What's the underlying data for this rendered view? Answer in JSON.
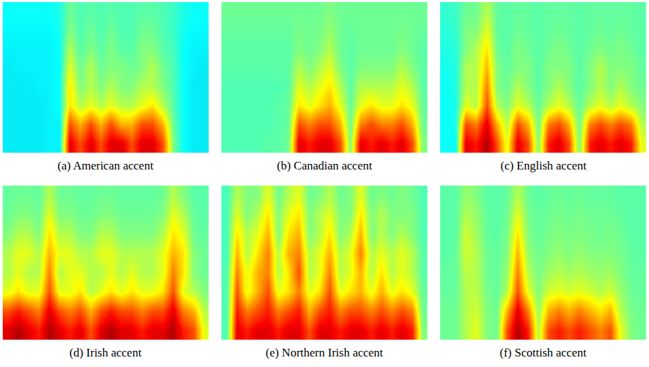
{
  "chart_data": [
    {
      "type": "heatmap",
      "title": "(a) American accent",
      "zlim": [
        0,
        10
      ],
      "tick_labels": false,
      "cells": [
        [
          3.5,
          3.5,
          3.5,
          3.5,
          3.6,
          3.6,
          9,
          8,
          9,
          8,
          9,
          9,
          8,
          9,
          9,
          8,
          5,
          3.8,
          3.5,
          3.5
        ],
        [
          3.5,
          3.5,
          3.5,
          3.5,
          3.6,
          3.6,
          8,
          7,
          8,
          7,
          8,
          7,
          7,
          8,
          8,
          7,
          4.8,
          3.8,
          3.5,
          3.5
        ],
        [
          3.5,
          3.5,
          3.5,
          3.5,
          3.6,
          3.8,
          6.5,
          5.5,
          6,
          5.5,
          6,
          5.5,
          5.5,
          6,
          6.5,
          5.5,
          4.6,
          3.8,
          3.5,
          3.5
        ],
        [
          3.5,
          3.5,
          3.5,
          3.6,
          3.6,
          3.8,
          6.5,
          5,
          5.5,
          5,
          5.5,
          5,
          5,
          5.5,
          5.5,
          5,
          4.5,
          3.8,
          3.5,
          3.5
        ],
        [
          3.5,
          3.6,
          3.6,
          3.6,
          3.6,
          3.8,
          6,
          4.8,
          5.5,
          4.8,
          5,
          5,
          4.8,
          5,
          5.5,
          4.8,
          4.5,
          3.8,
          3.6,
          3.5
        ],
        [
          3.6,
          3.6,
          3.6,
          3.6,
          3.6,
          3.8,
          5.5,
          4.6,
          5,
          4.6,
          5,
          4.6,
          4.6,
          5,
          5,
          4.6,
          4.4,
          3.8,
          3.6,
          3.6
        ],
        [
          3.7,
          3.7,
          3.7,
          3.7,
          3.7,
          3.9,
          5,
          4.5,
          4.8,
          4.5,
          4.8,
          4.5,
          4.5,
          4.8,
          4.8,
          4.5,
          4.3,
          3.9,
          3.7,
          3.7
        ],
        [
          3.8,
          3.8,
          3.8,
          3.8,
          3.8,
          4,
          4.8,
          4.5,
          4.6,
          4.5,
          4.6,
          4.5,
          4.5,
          4.6,
          4.6,
          4.5,
          4.3,
          4,
          3.8,
          3.8
        ]
      ]
    },
    {
      "type": "heatmap",
      "title": "(b) Canadian accent",
      "zlim": [
        0,
        10
      ],
      "tick_labels": false,
      "cells": [
        [
          4.5,
          4.5,
          4.5,
          4.5,
          4.6,
          4.6,
          4.8,
          9,
          8.5,
          9,
          9,
          8,
          5,
          9,
          8.5,
          9,
          8.5,
          9,
          8,
          5
        ],
        [
          4.5,
          4.5,
          4.5,
          4.5,
          4.5,
          4.6,
          4.7,
          8,
          7.5,
          8,
          8,
          7,
          4.8,
          7.5,
          8,
          7.5,
          7.5,
          8,
          7,
          4.8
        ],
        [
          4.5,
          4.5,
          4.5,
          4.5,
          4.5,
          4.6,
          4.7,
          6.5,
          6,
          6.5,
          7,
          6,
          4.7,
          6,
          6.5,
          6,
          6,
          6.5,
          6,
          4.7
        ],
        [
          4.5,
          4.5,
          4.5,
          4.5,
          4.5,
          4.5,
          4.6,
          6,
          5.5,
          6,
          6.5,
          5.5,
          4.6,
          5.5,
          5.5,
          5.5,
          5.5,
          6,
          5.5,
          4.6
        ],
        [
          4.6,
          4.6,
          4.6,
          4.6,
          4.6,
          4.6,
          4.6,
          5.5,
          5,
          5.5,
          6,
          5,
          4.6,
          5,
          5,
          5,
          5,
          5.5,
          5,
          4.6
        ],
        [
          4.6,
          4.6,
          4.6,
          4.6,
          4.6,
          4.6,
          4.6,
          5,
          4.8,
          5,
          5.5,
          4.8,
          4.6,
          4.8,
          4.8,
          4.8,
          4.8,
          5,
          4.8,
          4.6
        ],
        [
          4.7,
          4.7,
          4.7,
          4.7,
          4.7,
          4.7,
          4.7,
          4.9,
          4.8,
          4.9,
          5.2,
          4.8,
          4.7,
          4.8,
          4.8,
          4.8,
          4.8,
          4.9,
          4.8,
          4.7
        ],
        [
          4.8,
          4.8,
          4.8,
          4.8,
          4.8,
          4.8,
          4.8,
          4.8,
          4.8,
          4.8,
          5,
          4.8,
          4.8,
          4.8,
          4.8,
          4.8,
          4.8,
          4.8,
          4.8,
          4.8
        ]
      ]
    },
    {
      "type": "heatmap",
      "title": "(c) English accent",
      "zlim": [
        0,
        10
      ],
      "tick_labels": false,
      "cells": [
        [
          3.8,
          3.8,
          9,
          8.5,
          9.5,
          8,
          6,
          9,
          8,
          5,
          8.5,
          9,
          8,
          5,
          8.5,
          9,
          8.5,
          9,
          8.5,
          6
        ],
        [
          3.8,
          3.9,
          8,
          7.5,
          9,
          7,
          5.5,
          8,
          7,
          4.8,
          7.5,
          8,
          7,
          4.8,
          7.5,
          8,
          7.5,
          8,
          7.5,
          5.5
        ],
        [
          3.8,
          3.9,
          6,
          5.5,
          8,
          5.5,
          5,
          6,
          5.5,
          4.7,
          5.5,
          6,
          5.5,
          4.7,
          5.5,
          6,
          5.5,
          6,
          5.5,
          5
        ],
        [
          3.8,
          4,
          5.5,
          5.5,
          7.5,
          5,
          4.8,
          5.5,
          5,
          4.6,
          5,
          5.5,
          5,
          4.6,
          5,
          5.5,
          5,
          5.5,
          5,
          4.8
        ],
        [
          3.9,
          4,
          5.5,
          5.5,
          7,
          5,
          4.7,
          5,
          5,
          4.6,
          5,
          5,
          5,
          4.6,
          5,
          5.5,
          5,
          5,
          5,
          4.7
        ],
        [
          4,
          4.1,
          5,
          5.5,
          6.5,
          4.8,
          4.6,
          5,
          4.8,
          4.6,
          4.8,
          5,
          4.8,
          4.6,
          4.8,
          5,
          4.8,
          5,
          4.8,
          4.6
        ],
        [
          4.1,
          4.2,
          5,
          5,
          6,
          4.7,
          4.6,
          4.8,
          4.7,
          4.6,
          4.7,
          4.8,
          4.7,
          4.6,
          4.7,
          4.8,
          4.7,
          4.8,
          4.7,
          4.6
        ],
        [
          4.2,
          4.3,
          4.8,
          4.8,
          5.5,
          4.7,
          4.6,
          4.7,
          4.7,
          4.6,
          4.7,
          4.7,
          4.7,
          4.6,
          4.7,
          4.7,
          4.7,
          4.7,
          4.7,
          4.6
        ]
      ]
    },
    {
      "type": "heatmap",
      "title": "(d) Irish accent",
      "zlim": [
        0,
        10
      ],
      "tick_labels": false,
      "cells": [
        [
          9,
          9.5,
          9,
          8.5,
          9.5,
          9,
          8.5,
          9,
          8,
          9,
          9.5,
          9,
          9,
          8.5,
          9,
          9,
          9.5,
          8.5,
          8,
          6
        ],
        [
          8,
          8.5,
          8,
          7.5,
          9,
          8,
          7.5,
          8,
          7,
          8,
          8.5,
          8,
          8,
          7.5,
          8,
          8,
          9,
          7.5,
          7,
          5.5
        ],
        [
          6,
          6.5,
          6,
          6,
          8,
          6,
          6,
          6.5,
          5.5,
          6,
          6.5,
          6,
          6.5,
          6,
          6,
          6.5,
          8,
          6,
          5.5,
          5
        ],
        [
          5.5,
          6,
          5.5,
          5.5,
          7.5,
          5.5,
          6,
          6,
          5.5,
          5.5,
          6,
          5.5,
          6,
          5.5,
          5.5,
          6,
          7.5,
          6.5,
          5,
          4.8
        ],
        [
          5.5,
          6,
          6,
          5.5,
          7,
          6,
          6,
          5.5,
          5.5,
          6,
          6,
          5.5,
          5.5,
          5.5,
          5.5,
          6,
          7,
          6.5,
          5,
          4.8
        ],
        [
          5,
          5.5,
          5.5,
          5,
          6.5,
          5.5,
          5.5,
          5,
          5,
          5.5,
          5.5,
          5,
          5,
          5,
          5,
          5.5,
          6.5,
          6,
          4.8,
          4.7
        ],
        [
          4.8,
          5,
          5,
          4.8,
          6,
          5,
          5,
          4.8,
          4.8,
          5,
          5,
          4.8,
          4.8,
          4.8,
          4.8,
          5,
          6,
          5.5,
          4.7,
          4.6
        ],
        [
          4.7,
          4.8,
          4.8,
          4.7,
          5.5,
          4.8,
          4.8,
          4.7,
          4.7,
          4.8,
          4.8,
          4.7,
          4.7,
          4.7,
          4.7,
          4.8,
          5.5,
          5,
          4.6,
          4.6
        ]
      ]
    },
    {
      "type": "heatmap",
      "title": "(e) Northern Irish accent",
      "zlim": [
        0,
        10
      ],
      "tick_labels": false,
      "cells": [
        [
          4.5,
          9,
          8.5,
          9,
          9,
          8.5,
          9,
          9,
          8,
          9,
          9,
          8.5,
          9,
          9,
          8.5,
          9,
          8.5,
          9,
          8.5,
          5
        ],
        [
          4.5,
          8.5,
          7.5,
          8,
          8.5,
          7.5,
          8,
          8.5,
          7,
          8,
          8.5,
          7.5,
          8,
          8,
          7.5,
          8,
          7.5,
          8,
          7.5,
          4.8
        ],
        [
          4.5,
          8,
          6,
          7,
          8,
          6,
          6.5,
          7.5,
          6,
          6.5,
          8,
          6,
          6.5,
          7,
          6,
          7,
          6,
          6.5,
          6,
          4.7
        ],
        [
          4.5,
          7.5,
          6,
          7,
          7.5,
          5.5,
          6.5,
          8,
          5.5,
          6,
          7.5,
          5.5,
          6,
          7,
          5.5,
          6.5,
          5.5,
          6,
          5.5,
          4.6
        ],
        [
          4.4,
          7,
          5.5,
          6.5,
          7.5,
          5.5,
          7,
          7.5,
          5.5,
          6,
          7,
          5.5,
          6,
          7.5,
          5.5,
          6,
          5.5,
          6,
          5.5,
          4.6
        ],
        [
          4.4,
          6.5,
          5.5,
          6,
          7,
          5,
          6.5,
          7,
          5,
          5.5,
          6.5,
          5,
          5.5,
          7,
          5,
          5.5,
          5,
          5.5,
          5,
          4.5
        ],
        [
          4.4,
          6,
          5,
          5.5,
          6.5,
          5,
          6,
          6.5,
          5,
          5.5,
          6,
          5,
          5,
          6.5,
          5,
          5.5,
          5,
          5,
          5,
          4.5
        ],
        [
          4.4,
          5.5,
          5,
          5,
          6,
          4.8,
          5.5,
          6,
          4.8,
          5,
          5.5,
          4.8,
          5,
          6,
          4.8,
          5,
          4.8,
          5,
          4.8,
          4.5
        ]
      ]
    },
    {
      "type": "heatmap",
      "title": "(f) Scottish accent",
      "zlim": [
        0,
        10
      ],
      "tick_labels": false,
      "cells": [
        [
          4.8,
          4.8,
          5.5,
          6,
          5,
          4.8,
          8,
          9.5,
          8.5,
          5.5,
          8,
          8.5,
          8,
          8.5,
          8,
          7.5,
          8,
          6,
          5,
          4.8
        ],
        [
          4.8,
          4.8,
          5.5,
          5.8,
          5,
          4.8,
          7,
          9,
          7.5,
          5.2,
          7,
          7.5,
          7,
          7.5,
          7,
          6.5,
          7,
          5.5,
          4.9,
          4.8
        ],
        [
          4.7,
          4.7,
          5.5,
          5.6,
          4.9,
          4.7,
          5.5,
          8,
          6,
          5,
          5.8,
          6,
          5.8,
          6,
          5.8,
          5.5,
          5.8,
          5.2,
          4.8,
          4.7
        ],
        [
          4.7,
          4.7,
          5.6,
          5.5,
          4.8,
          4.7,
          5.2,
          7.5,
          5.5,
          4.9,
          5.3,
          5.5,
          5.3,
          5.5,
          5.3,
          5.2,
          5.3,
          5,
          4.7,
          4.7
        ],
        [
          4.6,
          4.7,
          5.8,
          5.5,
          4.8,
          4.7,
          5,
          7,
          5.2,
          4.8,
          5,
          5.2,
          5,
          5.2,
          5,
          5,
          5,
          4.9,
          4.7,
          4.6
        ],
        [
          4.6,
          4.6,
          5.8,
          5.3,
          4.7,
          4.6,
          4.9,
          6.5,
          5,
          4.7,
          4.9,
          5,
          4.9,
          5,
          4.9,
          4.8,
          4.9,
          4.8,
          4.6,
          4.6
        ],
        [
          4.6,
          4.6,
          5.5,
          5.2,
          4.7,
          4.6,
          4.8,
          6,
          4.9,
          4.7,
          4.8,
          4.9,
          4.8,
          4.9,
          4.8,
          4.8,
          4.8,
          4.7,
          4.6,
          4.6
        ],
        [
          4.6,
          4.6,
          5.2,
          5,
          4.6,
          4.6,
          4.7,
          5.5,
          4.8,
          4.6,
          4.7,
          4.8,
          4.7,
          4.8,
          4.7,
          4.7,
          4.7,
          4.6,
          4.6,
          4.6
        ]
      ]
    }
  ]
}
